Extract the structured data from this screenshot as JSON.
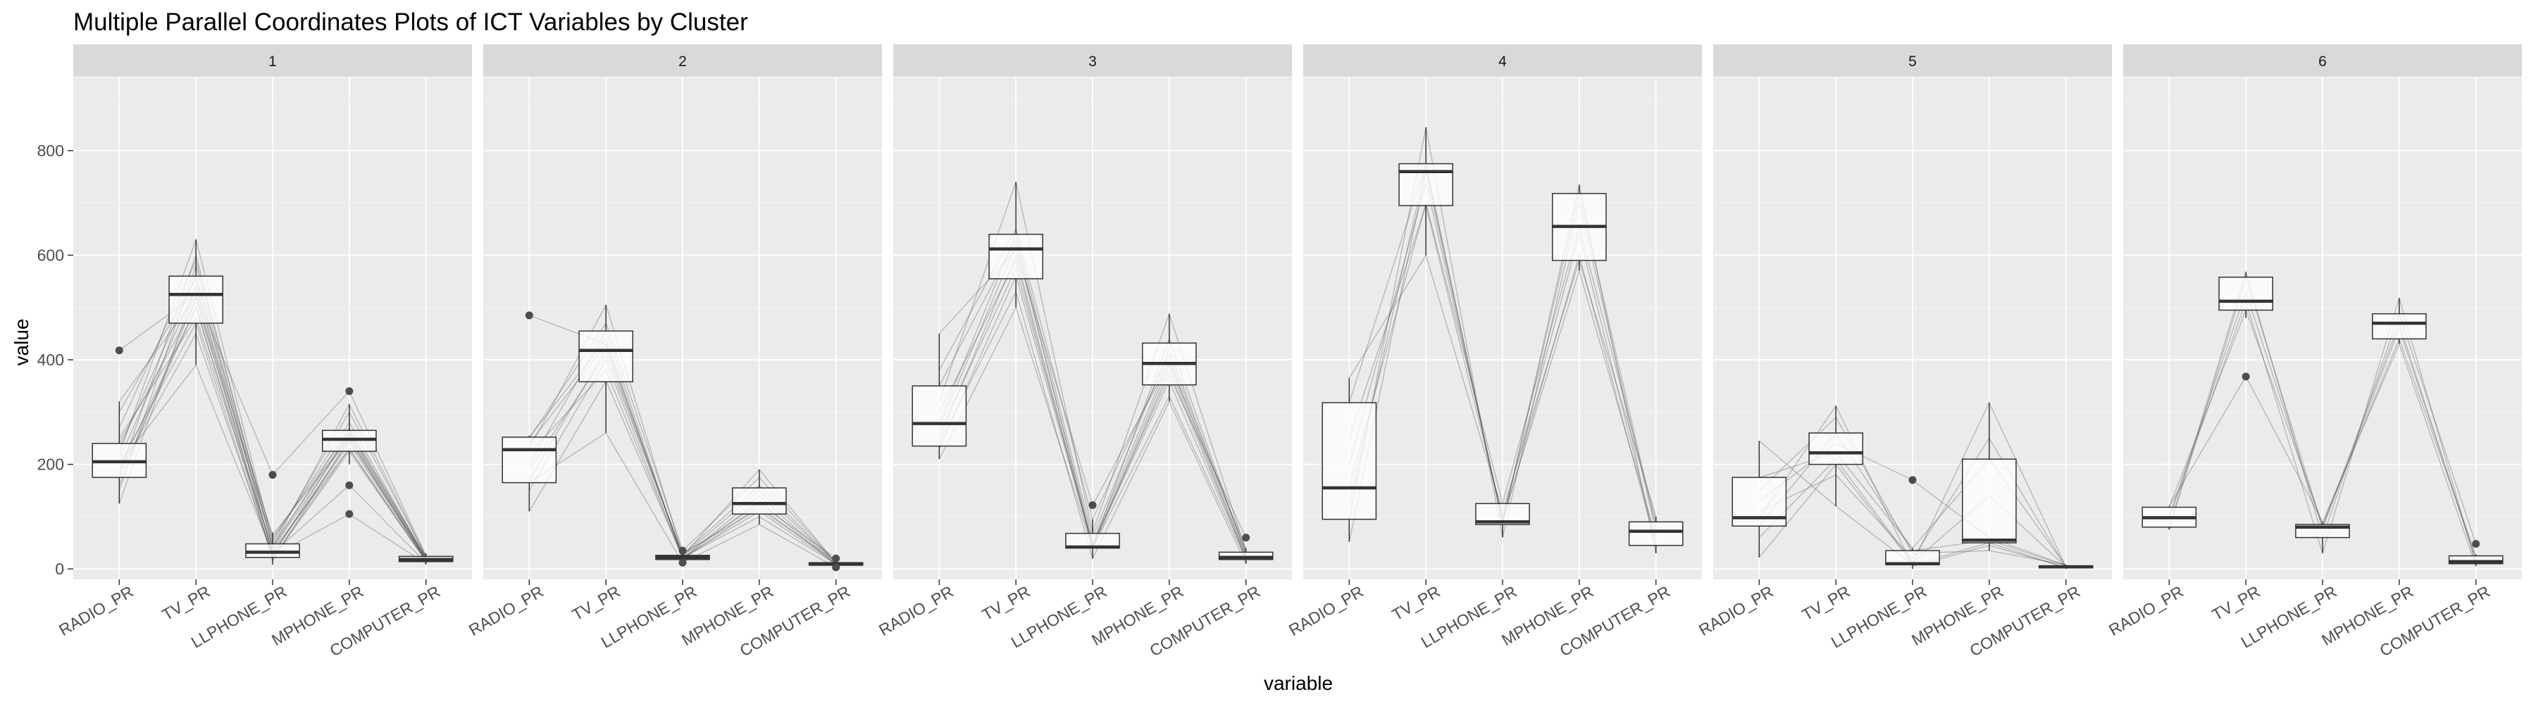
{
  "chart_data": {
    "type": "parallel-coordinates-boxplot-facets",
    "title": "Multiple Parallel Coordinates Plots of ICT Variables by Cluster",
    "xlabel": "variable",
    "ylabel": "value",
    "ylim": [
      -20,
      940
    ],
    "y_ticks": [
      0,
      200,
      400,
      600,
      800
    ],
    "categories": [
      "RADIO_PR",
      "TV_PR",
      "LLPHONE_PR",
      "MPHONE_PR",
      "COMPUTER_PR"
    ],
    "grid": true,
    "legend": "none",
    "colors": {
      "panel_background": "#ebebeb",
      "strip_background": "#d9d9d9",
      "grid_major": "#ffffff",
      "box_fill": "#ffffff",
      "box_outline": "#333333",
      "outlier": "#4d4d4d",
      "line_color": "#4d4d4d"
    },
    "facets": [
      {
        "label": "1",
        "boxes": [
          {
            "q1": 175,
            "median": 205,
            "q3": 240,
            "whisker_low": 125,
            "whisker_high": 320,
            "outliers": [
              418
            ]
          },
          {
            "q1": 470,
            "median": 525,
            "q3": 560,
            "whisker_low": 390,
            "whisker_high": 630,
            "outliers": []
          },
          {
            "q1": 22,
            "median": 32,
            "q3": 48,
            "whisker_low": 8,
            "whisker_high": 70,
            "outliers": [
              180
            ]
          },
          {
            "q1": 225,
            "median": 248,
            "q3": 265,
            "whisker_low": 200,
            "whisker_high": 315,
            "outliers": [
              340,
              160,
              105
            ]
          },
          {
            "q1": 14,
            "median": 18,
            "q3": 24,
            "whisker_low": 8,
            "whisker_high": 30,
            "outliers": []
          }
        ],
        "lines": [
          [
            125,
            540,
            15,
            250,
            15
          ],
          [
            150,
            580,
            25,
            260,
            20
          ],
          [
            160,
            520,
            30,
            240,
            18
          ],
          [
            180,
            600,
            40,
            270,
            22
          ],
          [
            190,
            500,
            35,
            230,
            16
          ],
          [
            200,
            470,
            20,
            225,
            14
          ],
          [
            210,
            540,
            45,
            260,
            20
          ],
          [
            220,
            630,
            50,
            300,
            25
          ],
          [
            230,
            560,
            28,
            245,
            18
          ],
          [
            240,
            510,
            55,
            280,
            20
          ],
          [
            250,
            480,
            38,
            255,
            17
          ],
          [
            270,
            590,
            42,
            315,
            24
          ],
          [
            300,
            555,
            60,
            265,
            22
          ],
          [
            320,
            520,
            65,
            250,
            19
          ],
          [
            418,
            525,
            180,
            340,
            25
          ],
          [
            200,
            390,
            30,
            160,
            12
          ],
          [
            185,
            450,
            25,
            105,
            10
          ],
          [
            175,
            500,
            22,
            230,
            15
          ]
        ]
      },
      {
        "label": "2",
        "boxes": [
          {
            "q1": 165,
            "median": 228,
            "q3": 252,
            "whisker_low": 110,
            "whisker_high": 255,
            "outliers": [
              485
            ]
          },
          {
            "q1": 358,
            "median": 418,
            "q3": 455,
            "whisker_low": 260,
            "whisker_high": 505,
            "outliers": []
          },
          {
            "q1": 18,
            "median": 22,
            "q3": 26,
            "whisker_low": 15,
            "whisker_high": 30,
            "outliers": [
              12,
              35
            ]
          },
          {
            "q1": 105,
            "median": 125,
            "q3": 155,
            "whisker_low": 85,
            "whisker_high": 190,
            "outliers": []
          },
          {
            "q1": 7,
            "median": 10,
            "q3": 12,
            "whisker_low": 4,
            "whisker_high": 15,
            "outliers": [
              20,
              3
            ]
          }
        ],
        "lines": [
          [
            110,
            360,
            22,
            110,
            10
          ],
          [
            150,
            400,
            20,
            130,
            8
          ],
          [
            170,
            420,
            25,
            150,
            12
          ],
          [
            200,
            455,
            18,
            120,
            10
          ],
          [
            220,
            380,
            22,
            100,
            9
          ],
          [
            230,
            505,
            28,
            160,
            12
          ],
          [
            240,
            430,
            24,
            190,
            11
          ],
          [
            252,
            440,
            20,
            140,
            10
          ],
          [
            485,
            430,
            26,
            125,
            20
          ],
          [
            165,
            260,
            12,
            85,
            3
          ],
          [
            190,
            410,
            30,
            115,
            15
          ],
          [
            250,
            470,
            35,
            175,
            12
          ]
        ]
      },
      {
        "label": "3",
        "boxes": [
          {
            "q1": 235,
            "median": 278,
            "q3": 350,
            "whisker_low": 210,
            "whisker_high": 450,
            "outliers": []
          },
          {
            "q1": 555,
            "median": 612,
            "q3": 640,
            "whisker_low": 500,
            "whisker_high": 740,
            "outliers": []
          },
          {
            "q1": 40,
            "median": 42,
            "q3": 68,
            "whisker_low": 20,
            "whisker_high": 95,
            "outliers": [
              122
            ]
          },
          {
            "q1": 352,
            "median": 393,
            "q3": 432,
            "whisker_low": 320,
            "whisker_high": 488,
            "outliers": []
          },
          {
            "q1": 18,
            "median": 22,
            "q3": 32,
            "whisker_low": 10,
            "whisker_high": 40,
            "outliers": [
              60
            ]
          }
        ],
        "lines": [
          [
            210,
            500,
            40,
            330,
            18
          ],
          [
            230,
            560,
            45,
            360,
            20
          ],
          [
            250,
            600,
            42,
            390,
            22
          ],
          [
            270,
            620,
            50,
            400,
            25
          ],
          [
            280,
            640,
            60,
            420,
            30
          ],
          [
            300,
            590,
            38,
            380,
            20
          ],
          [
            320,
            740,
            70,
            488,
            35
          ],
          [
            350,
            630,
            42,
            440,
            28
          ],
          [
            380,
            650,
            95,
            410,
            32
          ],
          [
            450,
            610,
            122,
            395,
            40
          ],
          [
            240,
            530,
            20,
            320,
            10
          ],
          [
            260,
            575,
            48,
            370,
            60
          ]
        ]
      },
      {
        "label": "4",
        "boxes": [
          {
            "q1": 95,
            "median": 155,
            "q3": 318,
            "whisker_low": 52,
            "whisker_high": 365,
            "outliers": []
          },
          {
            "q1": 695,
            "median": 760,
            "q3": 775,
            "whisker_low": 600,
            "whisker_high": 845,
            "outliers": []
          },
          {
            "q1": 85,
            "median": 90,
            "q3": 125,
            "whisker_low": 60,
            "whisker_high": 125,
            "outliers": []
          },
          {
            "q1": 590,
            "median": 655,
            "q3": 718,
            "whisker_low": 570,
            "whisker_high": 735,
            "outliers": []
          },
          {
            "q1": 45,
            "median": 72,
            "q3": 90,
            "whisker_low": 30,
            "whisker_high": 100,
            "outliers": []
          }
        ],
        "lines": [
          [
            52,
            760,
            90,
            600,
            45
          ],
          [
            95,
            845,
            60,
            700,
            72
          ],
          [
            155,
            700,
            125,
            655,
            90
          ],
          [
            318,
            775,
            85,
            735,
            30
          ],
          [
            365,
            600,
            110,
            590,
            100
          ],
          [
            200,
            740,
            95,
            570,
            60
          ],
          [
            120,
            770,
            88,
            718,
            80
          ],
          [
            250,
            695,
            100,
            640,
            50
          ]
        ]
      },
      {
        "label": "5",
        "boxes": [
          {
            "q1": 82,
            "median": 98,
            "q3": 175,
            "whisker_low": 22,
            "whisker_high": 245,
            "outliers": []
          },
          {
            "q1": 200,
            "median": 222,
            "q3": 260,
            "whisker_low": 120,
            "whisker_high": 312,
            "outliers": []
          },
          {
            "q1": 8,
            "median": 10,
            "q3": 35,
            "whisker_low": 0,
            "whisker_high": 40,
            "outliers": [
              170
            ]
          },
          {
            "q1": 50,
            "median": 55,
            "q3": 210,
            "whisker_low": 35,
            "whisker_high": 318,
            "outliers": []
          },
          {
            "q1": 2,
            "median": 4,
            "q3": 6,
            "whisker_low": 0,
            "whisker_high": 8,
            "outliers": []
          }
        ],
        "lines": [
          [
            22,
            200,
            10,
            318,
            4
          ],
          [
            82,
            260,
            35,
            55,
            6
          ],
          [
            98,
            312,
            5,
            45,
            3
          ],
          [
            175,
            222,
            40,
            210,
            5
          ],
          [
            245,
            120,
            8,
            50,
            2
          ],
          [
            130,
            240,
            170,
            60,
            7
          ],
          [
            60,
            210,
            12,
            140,
            4
          ],
          [
            150,
            290,
            30,
            35,
            8
          ],
          [
            110,
            180,
            20,
            250,
            3
          ]
        ]
      },
      {
        "label": "6",
        "boxes": [
          {
            "q1": 80,
            "median": 98,
            "q3": 118,
            "whisker_low": 75,
            "whisker_high": 120,
            "outliers": []
          },
          {
            "q1": 495,
            "median": 512,
            "q3": 558,
            "whisker_low": 480,
            "whisker_high": 568,
            "outliers": [
              368
            ]
          },
          {
            "q1": 60,
            "median": 80,
            "q3": 85,
            "whisker_low": 30,
            "whisker_high": 90,
            "outliers": []
          },
          {
            "q1": 440,
            "median": 470,
            "q3": 488,
            "whisker_low": 430,
            "whisker_high": 518,
            "outliers": []
          },
          {
            "q1": 10,
            "median": 14,
            "q3": 25,
            "whisker_low": 5,
            "whisker_high": 28,
            "outliers": [
              48
            ]
          }
        ],
        "lines": [
          [
            75,
            558,
            80,
            470,
            14
          ],
          [
            98,
            512,
            30,
            518,
            10
          ],
          [
            118,
            495,
            85,
            440,
            25
          ],
          [
            80,
            568,
            60,
            488,
            48
          ],
          [
            120,
            368,
            90,
            430,
            5
          ],
          [
            100,
            530,
            78,
            460,
            20
          ]
        ]
      }
    ]
  }
}
